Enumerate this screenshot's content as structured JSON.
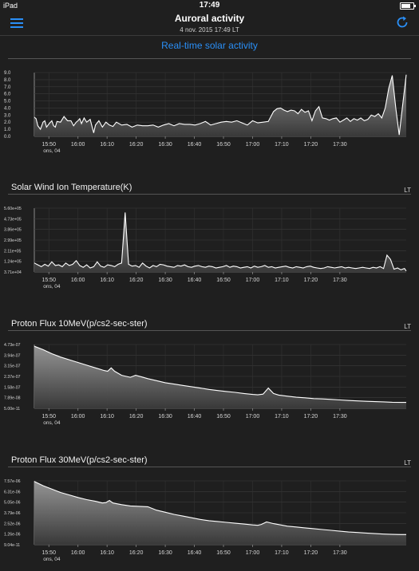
{
  "status_bar": {
    "carrier": "iPad",
    "time": "17:49"
  },
  "nav": {
    "title": "Auroral activity",
    "subtitle": "4 nov. 2015 17:49 LT",
    "menu_icon": "hamburger-menu-icon",
    "refresh_icon": "refresh-icon"
  },
  "colors": {
    "accent": "#2a8ff7",
    "background": "#1f1f1f",
    "line": "#ffffff"
  },
  "x_axis": {
    "ticks": [
      "15:50",
      "16:00",
      "16:10",
      "16:20",
      "16:30",
      "16:40",
      "16:50",
      "17:00",
      "17:10",
      "17:20",
      "17:30"
    ],
    "sublabel": "ons, 04"
  },
  "sections": [
    {
      "title": "Real-time solar activity",
      "lt": ""
    },
    {
      "title": "Solar Wind Ion Temperature(K)",
      "lt": "LT"
    },
    {
      "title": "Proton Flux 10MeV(p/cs2-sec-ster)",
      "lt": "LT"
    },
    {
      "title": "Proton Flux 30MeV(p/cs2-sec-ster)",
      "lt": "LT"
    }
  ],
  "chart_data": [
    {
      "type": "area",
      "title": "Real-time solar activity",
      "y_ticks": [
        "9.0",
        "8.0",
        "7.0",
        "6.0",
        "5.0",
        "4.0",
        "3.0",
        "2.0",
        "1.0",
        "0.0"
      ],
      "ylim": [
        0,
        9
      ],
      "xlim": [
        15.75,
        17.88
      ],
      "x": [
        15.75,
        15.76,
        15.77,
        15.785,
        15.8,
        15.81,
        15.82,
        15.835,
        15.85,
        15.86,
        15.87,
        15.88,
        15.9,
        15.92,
        15.94,
        15.96,
        15.975,
        15.99,
        16.0,
        16.01,
        16.02,
        16.035,
        16.05,
        16.07,
        16.09,
        16.1,
        16.12,
        16.14,
        16.16,
        16.18,
        16.2,
        16.22,
        16.25,
        16.28,
        16.31,
        16.34,
        16.37,
        16.4,
        16.43,
        16.46,
        16.49,
        16.52,
        16.55,
        16.58,
        16.61,
        16.64,
        16.67,
        16.7,
        16.73,
        16.76,
        16.79,
        16.82,
        16.85,
        16.88,
        16.91,
        16.94,
        16.97,
        17.0,
        17.03,
        17.06,
        17.09,
        17.12,
        17.14,
        17.16,
        17.18,
        17.2,
        17.22,
        17.24,
        17.26,
        17.28,
        17.3,
        17.32,
        17.34,
        17.36,
        17.38,
        17.4,
        17.42,
        17.44,
        17.46,
        17.48,
        17.5,
        17.52,
        17.54,
        17.56,
        17.58,
        17.6,
        17.62,
        17.64,
        17.66,
        17.68,
        17.7,
        17.72,
        17.74,
        17.76,
        17.78,
        17.8,
        17.82,
        17.84,
        17.86,
        17.88
      ],
      "values": [
        2.7,
        2.5,
        1.5,
        1.0,
        2.0,
        2.2,
        1.3,
        1.8,
        2.2,
        1.5,
        1.3,
        2.1,
        2.0,
        2.8,
        2.2,
        2.2,
        1.5,
        2.0,
        2.2,
        2.5,
        1.8,
        2.6,
        2.0,
        2.4,
        0.5,
        1.6,
        2.2,
        1.3,
        2.0,
        1.6,
        1.4,
        2.0,
        1.6,
        1.7,
        1.3,
        1.6,
        1.5,
        1.5,
        1.6,
        1.3,
        1.6,
        1.8,
        1.5,
        1.8,
        1.7,
        1.7,
        1.6,
        1.8,
        2.1,
        1.6,
        1.8,
        2.0,
        2.1,
        2.0,
        2.2,
        1.9,
        1.6,
        2.2,
        1.9,
        2.0,
        2.1,
        3.5,
        3.9,
        4.0,
        3.7,
        3.5,
        3.7,
        3.6,
        3.2,
        3.8,
        3.4,
        3.6,
        2.2,
        3.6,
        4.2,
        2.6,
        2.5,
        2.3,
        2.5,
        2.6,
        2.0,
        2.3,
        2.6,
        2.1,
        2.5,
        2.3,
        2.6,
        2.2,
        2.4,
        3.0,
        2.8,
        3.2,
        2.6,
        4.0,
        6.8,
        8.6,
        4.0,
        0.2,
        4.5,
        8.7
      ]
    },
    {
      "type": "area",
      "title": "Solar Wind Ion Temperature(K)",
      "y_ticks": [
        "5.60e+05",
        "4.73e+05",
        "3.86e+05",
        "2.99e+05",
        "2.11e+05",
        "1.24e+05",
        "3.71e+04"
      ],
      "ylim": [
        37100,
        560000
      ],
      "xlim": [
        15.75,
        17.88
      ],
      "x": [
        15.75,
        15.77,
        15.79,
        15.81,
        15.83,
        15.85,
        15.87,
        15.89,
        15.91,
        15.93,
        15.95,
        15.97,
        15.99,
        16.01,
        16.03,
        16.05,
        16.07,
        16.09,
        16.11,
        16.13,
        16.15,
        16.17,
        16.19,
        16.21,
        16.23,
        16.25,
        16.27,
        16.29,
        16.31,
        16.33,
        16.35,
        16.37,
        16.39,
        16.41,
        16.43,
        16.45,
        16.47,
        16.49,
        16.51,
        16.53,
        16.55,
        16.57,
        16.59,
        16.61,
        16.63,
        16.65,
        16.67,
        16.69,
        16.71,
        16.73,
        16.75,
        16.77,
        16.79,
        16.81,
        16.83,
        16.85,
        16.87,
        16.89,
        16.91,
        16.93,
        16.95,
        16.97,
        16.99,
        17.01,
        17.03,
        17.05,
        17.07,
        17.09,
        17.11,
        17.13,
        17.15,
        17.17,
        17.19,
        17.21,
        17.23,
        17.25,
        17.27,
        17.29,
        17.31,
        17.33,
        17.35,
        17.37,
        17.39,
        17.41,
        17.43,
        17.45,
        17.47,
        17.49,
        17.51,
        17.53,
        17.55,
        17.57,
        17.59,
        17.61,
        17.63,
        17.65,
        17.67,
        17.69,
        17.71,
        17.73,
        17.75,
        17.77,
        17.79,
        17.81,
        17.83,
        17.85,
        17.87,
        17.88
      ],
      "values": [
        110000,
        95000,
        80000,
        100000,
        85000,
        120000,
        90000,
        95000,
        80000,
        110000,
        90000,
        100000,
        130000,
        90000,
        75000,
        95000,
        70000,
        80000,
        120000,
        85000,
        75000,
        95000,
        90000,
        80000,
        100000,
        110000,
        525000,
        100000,
        85000,
        90000,
        75000,
        110000,
        85000,
        70000,
        90000,
        80000,
        100000,
        95000,
        85000,
        80000,
        75000,
        90000,
        85000,
        95000,
        80000,
        75000,
        85000,
        90000,
        80000,
        75000,
        85000,
        80000,
        70000,
        75000,
        80000,
        90000,
        75000,
        85000,
        80000,
        70000,
        75000,
        80000,
        70000,
        85000,
        75000,
        80000,
        90000,
        75000,
        80000,
        70000,
        75000,
        80000,
        85000,
        75000,
        70000,
        80000,
        75000,
        70000,
        80000,
        85000,
        75000,
        70000,
        65000,
        70000,
        80000,
        75000,
        70000,
        75000,
        80000,
        70000,
        75000,
        70000,
        65000,
        70000,
        75000,
        70000,
        65000,
        75000,
        70000,
        80000,
        65000,
        175000,
        140000,
        60000,
        70000,
        55000,
        65000,
        45000
      ]
    },
    {
      "type": "area",
      "title": "Proton Flux 10MeV(p/cs2-sec-ster)",
      "y_ticks": [
        "4.73e-07",
        "3.94e-07",
        "3.15e-07",
        "2.37e-07",
        "1.58e-07",
        "7.89e-08",
        "5.00e-11"
      ],
      "ylim": [
        5e-11,
        4.73e-07
      ],
      "xlim": [
        15.75,
        17.88
      ],
      "x": [
        15.75,
        15.8,
        15.85,
        15.9,
        15.95,
        16.0,
        16.05,
        16.1,
        16.15,
        16.17,
        16.19,
        16.21,
        16.25,
        16.3,
        16.33,
        16.36,
        16.4,
        16.45,
        16.5,
        16.55,
        16.6,
        16.65,
        16.7,
        16.75,
        16.8,
        16.85,
        16.9,
        16.95,
        17.0,
        17.03,
        17.06,
        17.09,
        17.12,
        17.15,
        17.2,
        17.25,
        17.3,
        17.35,
        17.4,
        17.45,
        17.5,
        17.55,
        17.6,
        17.65,
        17.7,
        17.75,
        17.8,
        17.85,
        17.88
      ],
      "values": [
        4.6e-07,
        4.35e-07,
        4.05e-07,
        3.8e-07,
        3.6e-07,
        3.4e-07,
        3.2e-07,
        3e-07,
        2.8e-07,
        2.75e-07,
        3e-07,
        2.75e-07,
        2.45e-07,
        2.3e-07,
        2.45e-07,
        2.35e-07,
        2.2e-07,
        2.05e-07,
        1.9e-07,
        1.8e-07,
        1.7e-07,
        1.6e-07,
        1.5e-07,
        1.4e-07,
        1.32e-07,
        1.25e-07,
        1.18e-07,
        1.1e-07,
        1.03e-07,
        1e-07,
        1.05e-07,
        1.5e-07,
        1.1e-07,
        9.8e-08,
        9e-08,
        8.2e-08,
        7.8e-08,
        7.2e-08,
        7e-08,
        6.6e-08,
        6.2e-08,
        5.8e-08,
        5.5e-08,
        5.2e-08,
        5e-08,
        4.8e-08,
        4.5e-08,
        4.4e-08,
        4.4e-08
      ]
    },
    {
      "type": "area",
      "title": "Proton Flux 30MeV(p/cs2-sec-ster)",
      "y_ticks": [
        "7.57e-06",
        "6.31e-06",
        "5.05e-06",
        "3.79e-06",
        "2.52e-06",
        "1.26e-06",
        "9.04e-11"
      ],
      "ylim": [
        9.04e-11,
        7.57e-06
      ],
      "xlim": [
        15.75,
        17.88
      ],
      "x": [
        15.75,
        15.8,
        15.85,
        15.9,
        15.95,
        16.0,
        16.05,
        16.1,
        16.14,
        16.16,
        16.18,
        16.2,
        16.25,
        16.3,
        16.35,
        16.4,
        16.45,
        16.5,
        16.55,
        16.6,
        16.65,
        16.7,
        16.75,
        16.8,
        16.85,
        16.9,
        16.95,
        17.0,
        17.03,
        17.05,
        17.08,
        17.12,
        17.16,
        17.2,
        17.25,
        17.3,
        17.35,
        17.4,
        17.45,
        17.5,
        17.55,
        17.6,
        17.65,
        17.7,
        17.75,
        17.8,
        17.85,
        17.88
      ],
      "values": [
        7.5e-06,
        7e-06,
        6.6e-06,
        6.2e-06,
        5.9e-06,
        5.6e-06,
        5.35e-06,
        5.15e-06,
        4.95e-06,
        5e-06,
        5.25e-06,
        4.95e-06,
        4.75e-06,
        4.6e-06,
        4.55e-06,
        4.5e-06,
        4.1e-06,
        3.85e-06,
        3.6e-06,
        3.4e-06,
        3.2e-06,
        3e-06,
        2.85e-06,
        2.75e-06,
        2.65e-06,
        2.55e-06,
        2.45e-06,
        2.35e-06,
        2.3e-06,
        2.4e-06,
        2.7e-06,
        2.5e-06,
        2.35e-06,
        2.2e-06,
        2.1e-06,
        2e-06,
        1.9e-06,
        1.8e-06,
        1.7e-06,
        1.6e-06,
        1.5e-06,
        1.45e-06,
        1.38e-06,
        1.32e-06,
        1.26e-06,
        1.22e-06,
        1.2e-06,
        1.2e-06
      ]
    }
  ]
}
